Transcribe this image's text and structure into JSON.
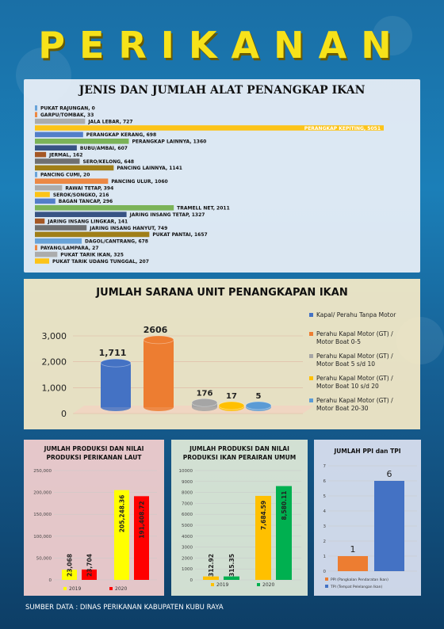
{
  "page_title": "PERIKANAN",
  "source_text": "SUMBER DATA : DINAS PERIKANAN KABUPATEN KUBU RAYA",
  "chart_data": [
    {
      "type": "bar",
      "orientation": "horizontal",
      "title": "JENIS DAN JUMLAH ALAT PENANGKAP IKAN",
      "categories": [
        "PUKAT RAJUNGAN",
        "GARPU/TOMBAK",
        "JALA LEBAR",
        "PERANGKAP KEPITING",
        "PERANGKAP KERANG",
        "PERANGKAP LAINNYA",
        "BUBU/AMBAI",
        "JERMAL",
        "SERO/KELONG",
        "PANCING LAINNYA",
        "PANCING CUMI",
        "PANCING ULUR",
        "RAWAI TETAP",
        "SEROK/SONGKO",
        "BAGAN TANCAP",
        "TRAMELL NET",
        "JARING INSANG TETAP",
        "JARING INSANG LINGKAR",
        "JARING INSANG HANYUT",
        "PUKAT PANTAI",
        "DAGOL/CANTRANG",
        "PAYANG/LAMPARA",
        "PUKAT TARIK IKAN",
        "PUKAT TARIK UDANG TUNGGAL"
      ],
      "labels": [
        "PUKAT RAJUNGAN, 0",
        "GARPU/TOMBAK, 33",
        "JALA LEBAR, 727",
        "PERANGKAP KEPITING, 5051",
        "PERANGKAP KERANG, 698",
        "PERANGKAP LAINNYA, 1360",
        "BUBU/AMBAI, 607",
        "JERMAL, 162",
        "SERO/KELONG, 648",
        "PANCING LAINNYA, 1141",
        "PANCING CUMI, 20",
        "PANCING ULUR, 1060",
        "RAWAI TETAP, 394",
        "SEROK/SONGKO, 216",
        "BAGAN TANCAP, 296",
        "TRAMELL NET, 2011",
        "JARING INSANG TETAP, 1327",
        "JARING INSANG LINGKAR, 141",
        "JARING INSANG HANYUT, 749",
        "PUKAT PANTAI, 1657",
        "DAGOL/CANTRANG, 678",
        "PAYANG/LAMPARA, 27",
        "PUKAT TARIK IKAN, 325",
        "PUKAT TARIK UDANG TUNGGAL, 207"
      ],
      "values": [
        0,
        33,
        727,
        5051,
        698,
        1360,
        607,
        162,
        648,
        1141,
        20,
        1060,
        394,
        216,
        296,
        2011,
        1327,
        141,
        749,
        1657,
        678,
        27,
        325,
        207
      ],
      "colors": [
        "#5b9bd5",
        "#ed7d31",
        "#a5a5a5",
        "#ffc000",
        "#4472c4",
        "#70ad47",
        "#264478",
        "#9e480e",
        "#636363",
        "#997300"
      ]
    },
    {
      "type": "bar",
      "style": "3d-cylinder",
      "title": "JUMLAH SARANA UNIT PENANGKAPAN  IKAN",
      "yticks": [
        "0",
        "1,000",
        "2,000",
        "3,000"
      ],
      "ylim": [
        0,
        3000
      ],
      "series": [
        {
          "name": "Kapal/ Perahu Tanpa Motor",
          "value": 1711,
          "label": "1,711",
          "color": "#4472c4"
        },
        {
          "name": "Perahu Kapal  Motor (GT) / Motor Boat 0-5",
          "value": 2606,
          "label": "2606",
          "color": "#ed7d31"
        },
        {
          "name": "Perahu Kapal  Motor (GT) / Motor Boat 5 s/d 10",
          "value": 176,
          "label": "176",
          "color": "#a5a5a5"
        },
        {
          "name": "Perahu Kapal  Motor (GT) / Motor Boat 10 s/d 20",
          "value": 17,
          "label": "17",
          "color": "#ffc000"
        },
        {
          "name": "Perahu Kapal  Motor (GT) / Motor Boat 20-30",
          "value": 5,
          "label": "5",
          "color": "#5b9bd5"
        }
      ]
    },
    {
      "type": "bar",
      "title": "JUMLAH PRODUKSI DAN NILAI PRODUKSI PERIKANAN LAUT",
      "categories": [
        "2019",
        "2020"
      ],
      "yticks": [
        "0",
        "50,000",
        "100,000",
        "150,000",
        "200,000",
        "250,000"
      ],
      "ylim": [
        0,
        250000
      ],
      "values": [
        23068,
        23704,
        205248.36,
        191408.72
      ],
      "labels": [
        "23,068",
        "23,704",
        "205,248.36",
        "191,408.72"
      ],
      "colors": [
        "#ffff00",
        "#ff0000",
        "#ffff00",
        "#ff0000"
      ],
      "legend": [
        {
          "label": "2019",
          "color": "#ffff00"
        },
        {
          "label": "2020",
          "color": "#ff0000"
        }
      ]
    },
    {
      "type": "bar",
      "title": "JUMLAH PRODUKSI DAN NILAI PRODUKSI IKAN PERAIRAN UMUM",
      "categories": [
        "2019",
        "2020"
      ],
      "yticks": [
        "0",
        "1000",
        "2000",
        "3000",
        "4000",
        "5000",
        "6000",
        "7000",
        "8000",
        "9000",
        "10000"
      ],
      "ylim": [
        0,
        10000
      ],
      "values": [
        312.92,
        315.35,
        7684.59,
        8580.11
      ],
      "labels": [
        "312.92",
        "315.35",
        "7,684.59",
        "8,580.11"
      ],
      "colors": [
        "#ffc000",
        "#00b050",
        "#ffc000",
        "#00b050"
      ],
      "legend": [
        {
          "label": "2019",
          "color": "#ffc000"
        },
        {
          "label": "2020",
          "color": "#00b050"
        }
      ]
    },
    {
      "type": "bar",
      "title": "JUMLAH PPI dan TPI",
      "yticks": [
        "0",
        "1",
        "2",
        "3",
        "4",
        "5",
        "6",
        "7"
      ],
      "ylim": [
        0,
        7
      ],
      "values": [
        1,
        6
      ],
      "labels": [
        "1",
        "6"
      ],
      "colors": [
        "#ed7d31",
        "#4472c4"
      ],
      "legend": [
        {
          "label": "PPI (Pangkalan Pendaratan Ikan)",
          "color": "#ed7d31"
        },
        {
          "label": "TPI (Tempat Pelelangan Ikan)",
          "color": "#4472c4"
        }
      ]
    }
  ]
}
